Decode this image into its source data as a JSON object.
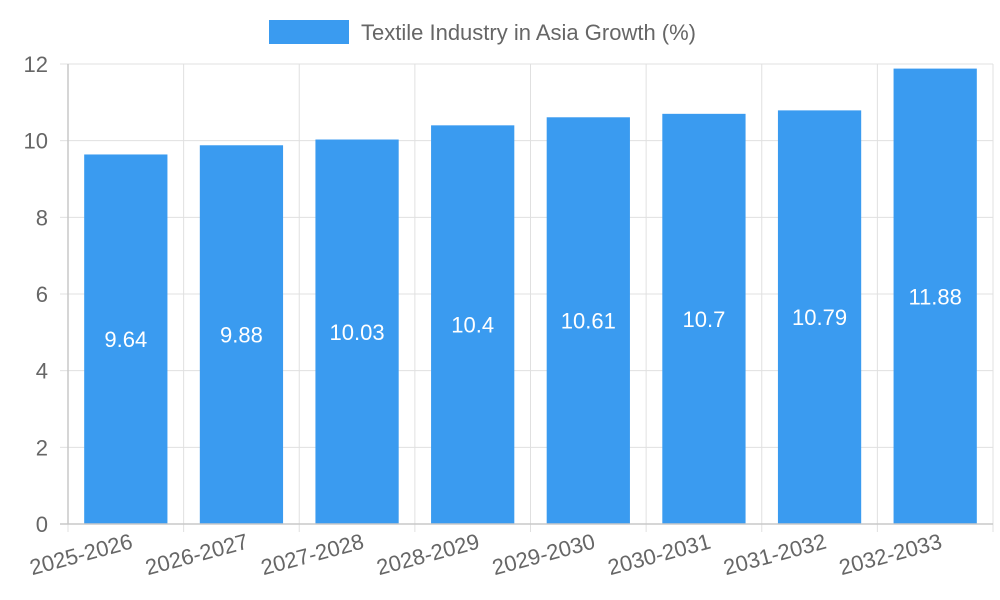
{
  "chart_data": {
    "type": "bar",
    "categories": [
      "2025-2026",
      "2026-2027",
      "2027-2028",
      "2028-2029",
      "2029-2030",
      "2030-2031",
      "2031-2032",
      "2032-2033"
    ],
    "series": [
      {
        "name": "Textile Industry in Asia Growth (%)",
        "values": [
          9.64,
          9.88,
          10.03,
          10.4,
          10.61,
          10.7,
          10.79,
          11.88
        ],
        "color": "#3a9bf0"
      }
    ],
    "ylim": [
      0,
      12
    ],
    "yticks": [
      0,
      2,
      4,
      6,
      8,
      10,
      12
    ],
    "grid": true,
    "legend_position": "top-center",
    "data_labels": true,
    "xlabel": "",
    "ylabel": ""
  }
}
